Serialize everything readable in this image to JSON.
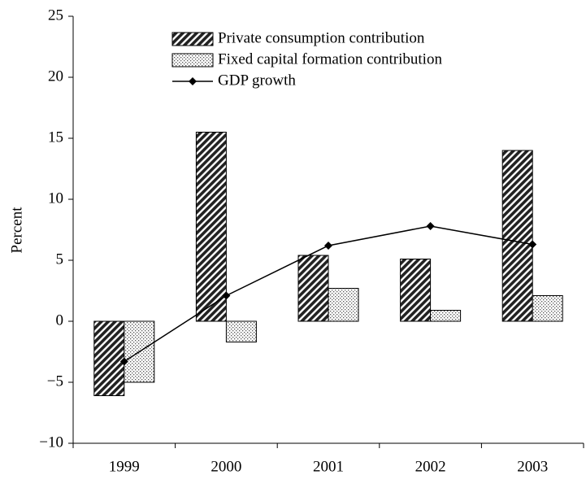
{
  "chart_data": {
    "type": "bar",
    "y_label": "Percent",
    "categories": [
      "1999",
      "2000",
      "2001",
      "2002",
      "2003"
    ],
    "series": [
      {
        "name": "Private consumption contribution",
        "values": [
          -6.1,
          15.5,
          5.4,
          5.1,
          14.0
        ]
      },
      {
        "name": "Fixed capital formation contribution",
        "values": [
          -5.0,
          -1.7,
          2.7,
          0.9,
          2.1
        ]
      },
      {
        "name": "GDP growth",
        "type": "line",
        "values": [
          -3.3,
          2.1,
          6.2,
          7.8,
          6.3
        ]
      }
    ],
    "ylim": [
      -10,
      25
    ],
    "yticks": [
      {
        "value": -10,
        "label": "−10"
      },
      {
        "value": -5,
        "label": "−5"
      },
      0,
      5,
      10,
      15,
      20,
      25
    ],
    "grid": false,
    "legend": "top"
  }
}
